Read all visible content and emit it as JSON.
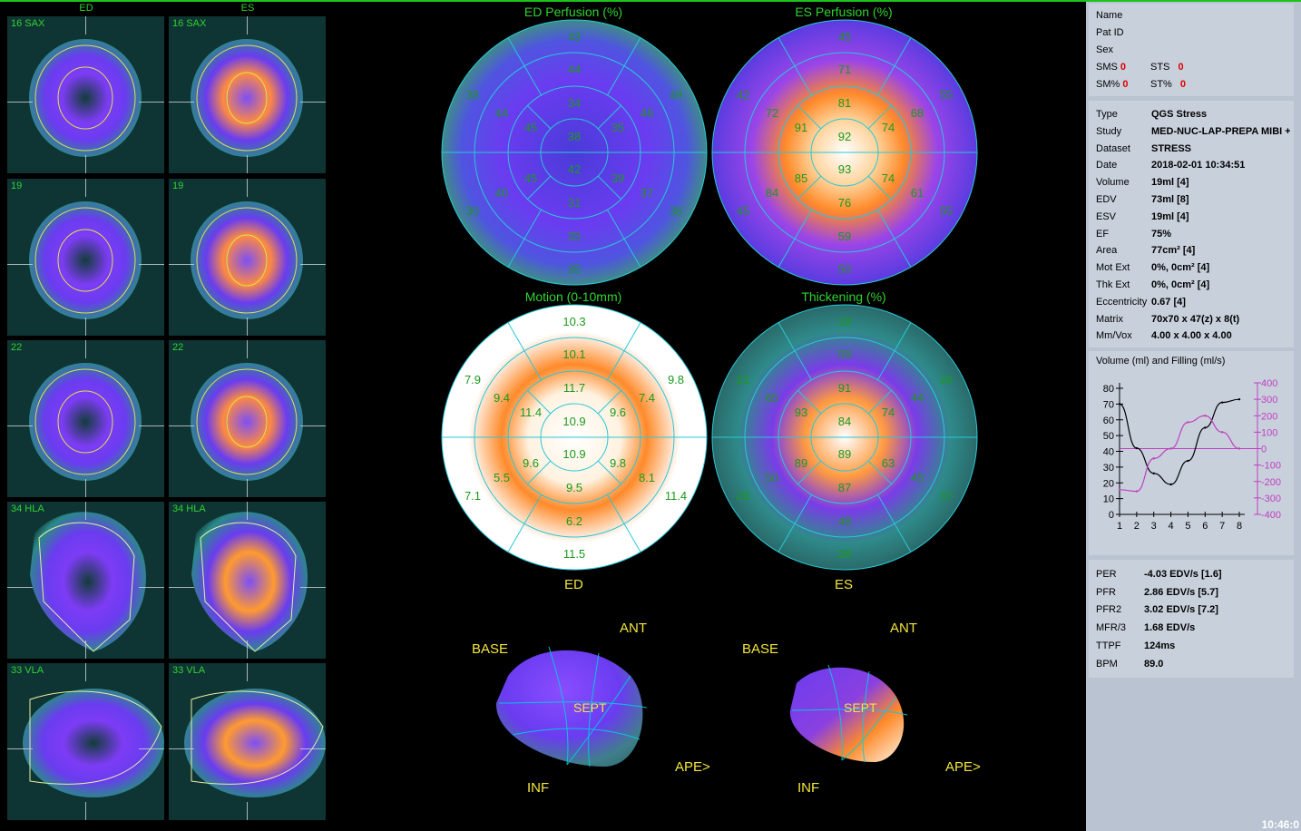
{
  "left": {
    "col_ed": "ED",
    "col_es": "ES",
    "rows": [
      {
        "ed_label": "16 SAX",
        "es_label": "16 SAX"
      },
      {
        "ed_label": "19",
        "es_label": "19"
      },
      {
        "ed_label": "22",
        "es_label": "22"
      },
      {
        "ed_label": "34 HLA",
        "es_label": "34 HLA"
      },
      {
        "ed_label": "33 VLA",
        "es_label": "33 VLA"
      }
    ]
  },
  "polar_maps": {
    "ed_perfusion": {
      "title": "ED Perfusion (%)",
      "values": [
        "43",
        "44",
        "38",
        "49",
        "44",
        "46",
        "34",
        "45",
        "35",
        "38",
        "42",
        "45",
        "39",
        "40",
        "37",
        "30",
        "31",
        "36",
        "35",
        "35"
      ]
    },
    "es_perfusion": {
      "title": "ES Perfusion (%)",
      "values": [
        "45",
        "71",
        "42",
        "55",
        "72",
        "68",
        "81",
        "91",
        "74",
        "92",
        "93",
        "85",
        "74",
        "84",
        "61",
        "45",
        "76",
        "55",
        "59",
        "50"
      ]
    },
    "motion": {
      "title": "Motion (0-10mm)",
      "values": [
        "10.3",
        "10.1",
        "7.9",
        "9.8",
        "9.4",
        "7.4",
        "11.7",
        "11.4",
        "9.6",
        "10.9",
        "10.9",
        "9.6",
        "9.8",
        "5.5",
        "8.1",
        "7.1",
        "9.5",
        "11.4",
        "6.2",
        "11.5"
      ],
      "footer": "ED"
    },
    "thickening": {
      "title": "Thickening (%)",
      "values": [
        "18",
        "59",
        "21",
        "20",
        "65",
        "44",
        "91",
        "93",
        "74",
        "84",
        "89",
        "89",
        "63",
        "50",
        "45",
        "26",
        "87",
        "37",
        "48",
        "28"
      ],
      "footer": "ES"
    }
  },
  "surfaces": [
    {
      "base": "BASE",
      "ant": "ANT",
      "sept": "SEPT",
      "ape": "APE>",
      "inf": "INF"
    },
    {
      "base": "BASE",
      "ant": "ANT",
      "sept": "SEPT",
      "ape": "APE>",
      "inf": "INF"
    }
  ],
  "patient": {
    "name_label": "Name",
    "patid_label": "Pat ID",
    "sex_label": "Sex",
    "sms_label": "SMS",
    "sms_val": "0",
    "sts_label": "STS",
    "sts_val": "0",
    "smp_label": "SM%",
    "smp_val": "0",
    "stp_label": "ST%",
    "stp_val": "0"
  },
  "study": [
    {
      "k": "Type",
      "v": "QGS Stress"
    },
    {
      "k": "Study",
      "v": "MED-NUC-LAP-PREPA MIBI + I"
    },
    {
      "k": "Dataset",
      "v": "STRESS"
    },
    {
      "k": "Date",
      "v": "2018-02-01 10:34:51"
    },
    {
      "k": "Volume",
      "v": "19ml [4]"
    },
    {
      "k": "EDV",
      "v": "73ml [8]"
    },
    {
      "k": "ESV",
      "v": "19ml [4]"
    },
    {
      "k": "EF",
      "v": "75%"
    },
    {
      "k": "Area",
      "v": "77cm² [4]"
    },
    {
      "k": "Mot Ext",
      "v": "0%, 0cm² [4]"
    },
    {
      "k": "Thk Ext",
      "v": "0%, 0cm² [4]"
    },
    {
      "k": "Eccentricity",
      "v": "0.67 [4]"
    },
    {
      "k": "Matrix",
      "v": "70x70 x 47(z) x 8(t)"
    },
    {
      "k": "Mm/Vox",
      "v": "4.00 x 4.00 x 4.00"
    }
  ],
  "chart_data": {
    "type": "line",
    "title": "Volume (ml) and Filling (ml/s)",
    "x": [
      1,
      2,
      3,
      4,
      5,
      6,
      7,
      8
    ],
    "x_ticks": [
      "1",
      "2",
      "3",
      "4",
      "5",
      "6",
      "7",
      "8"
    ],
    "y_left_ticks": [
      "80",
      "70",
      "60",
      "50",
      "40",
      "30",
      "20",
      "10",
      "0"
    ],
    "y_right_ticks": [
      "400",
      "300",
      "200",
      "100",
      "0",
      "-100",
      "-200",
      "-300",
      "-400"
    ],
    "y_left_range": [
      0,
      80
    ],
    "y_right_range": [
      -400,
      400
    ],
    "series": [
      {
        "color": "#000000",
        "axis": "left",
        "values": [
          70,
          42,
          26,
          19,
          34,
          55,
          71,
          73
        ]
      },
      {
        "color": "#c040c0",
        "axis": "right",
        "values": [
          -250,
          -260,
          -60,
          0,
          160,
          200,
          100,
          0
        ]
      }
    ]
  },
  "filling": [
    {
      "k": "PER",
      "v": "-4.03 EDV/s [1.6]"
    },
    {
      "k": "PFR",
      "v": "2.86 EDV/s [5.7]"
    },
    {
      "k": "PFR2",
      "v": "3.02 EDV/s [7.2]"
    },
    {
      "k": "MFR/3",
      "v": "1.68 EDV/s"
    },
    {
      "k": "TTPF",
      "v": "124ms"
    },
    {
      "k": "BPM",
      "v": "89.0"
    }
  ],
  "clock": "10:46:0",
  "colors": {
    "label_green": "#2fd42f",
    "orient_yellow": "#f2e63b",
    "panel_bg": "#c8d0dc",
    "score_red": "#e00000"
  }
}
